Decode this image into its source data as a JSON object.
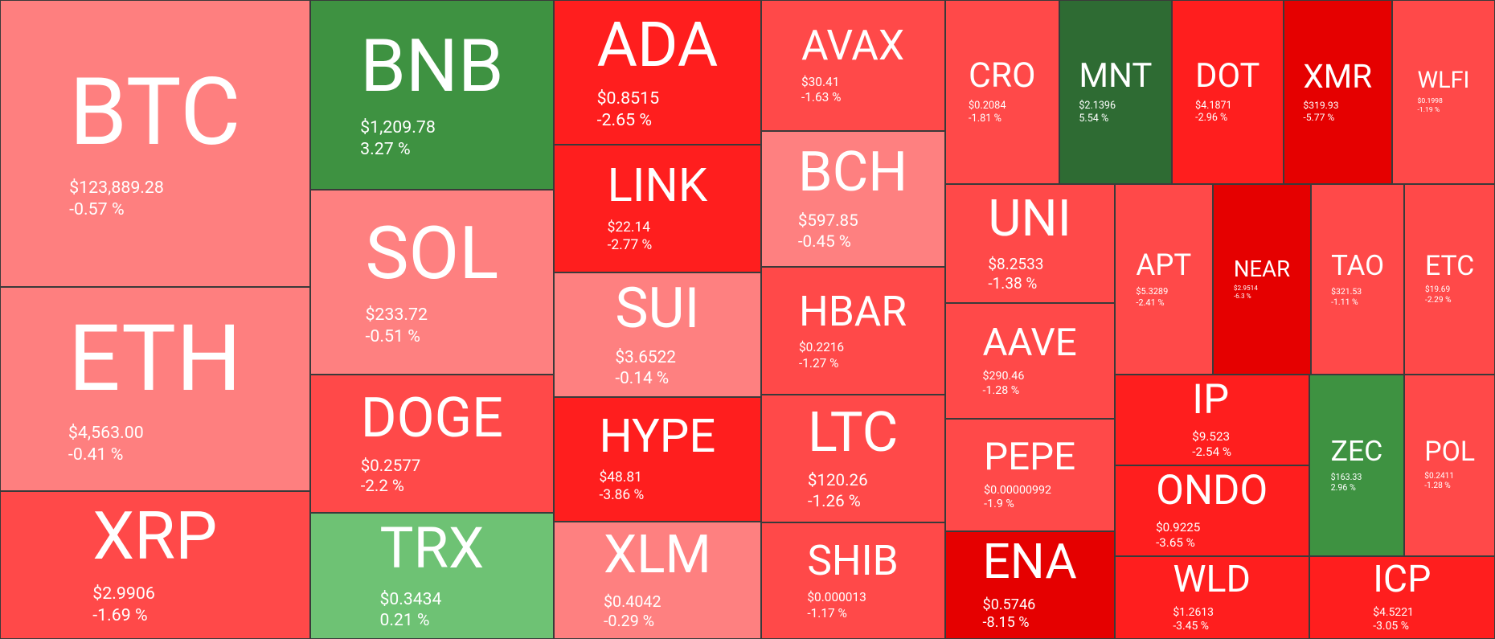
{
  "tiles": [
    {
      "symbol": "BTC",
      "price": "$123,889.28",
      "change": "-0.57 %"
    },
    {
      "symbol": "ETH",
      "price": "$4,563.00",
      "change": "-0.41 %"
    },
    {
      "symbol": "XRP",
      "price": "$2.9906",
      "change": "-1.69 %"
    },
    {
      "symbol": "BNB",
      "price": "$1,209.78",
      "change": "3.27 %"
    },
    {
      "symbol": "SOL",
      "price": "$233.72",
      "change": "-0.51 %"
    },
    {
      "symbol": "DOGE",
      "price": "$0.2577",
      "change": "-2.2 %"
    },
    {
      "symbol": "TRX",
      "price": "$0.3434",
      "change": "0.21 %"
    },
    {
      "symbol": "ADA",
      "price": "$0.8515",
      "change": "-2.65 %"
    },
    {
      "symbol": "LINK",
      "price": "$22.14",
      "change": "-2.77 %"
    },
    {
      "symbol": "SUI",
      "price": "$3.6522",
      "change": "-0.14 %"
    },
    {
      "symbol": "HYPE",
      "price": "$48.81",
      "change": "-3.86 %"
    },
    {
      "symbol": "XLM",
      "price": "$0.4042",
      "change": "-0.29 %"
    },
    {
      "symbol": "AVAX",
      "price": "$30.41",
      "change": "-1.63 %"
    },
    {
      "symbol": "BCH",
      "price": "$597.85",
      "change": "-0.45 %"
    },
    {
      "symbol": "HBAR",
      "price": "$0.2216",
      "change": "-1.27 %"
    },
    {
      "symbol": "LTC",
      "price": "$120.26",
      "change": "-1.26 %"
    },
    {
      "symbol": "SHIB",
      "price": "$0.000013",
      "change": "-1.17 %"
    },
    {
      "symbol": "CRO",
      "price": "$0.2084",
      "change": "-1.81 %"
    },
    {
      "symbol": "MNT",
      "price": "$2.1396",
      "change": "5.54 %"
    },
    {
      "symbol": "DOT",
      "price": "$4.1871",
      "change": "-2.96 %"
    },
    {
      "symbol": "XMR",
      "price": "$319.93",
      "change": "-5.77 %"
    },
    {
      "symbol": "WLFI",
      "price": "$0.1998",
      "change": "-1.19 %"
    },
    {
      "symbol": "UNI",
      "price": "$8.2533",
      "change": "-1.38 %"
    },
    {
      "symbol": "AAVE",
      "price": "$290.46",
      "change": "-1.28 %"
    },
    {
      "symbol": "PEPE",
      "price": "$0.00000992",
      "change": "-1.9 %"
    },
    {
      "symbol": "ENA",
      "price": "$0.5746",
      "change": "-8.15 %"
    },
    {
      "symbol": "APT",
      "price": "$5.3289",
      "change": "-2.41 %"
    },
    {
      "symbol": "NEAR",
      "price": "$2.9514",
      "change": "-6.3 %"
    },
    {
      "symbol": "TAO",
      "price": "$321.53",
      "change": "-1.11 %"
    },
    {
      "symbol": "ETC",
      "price": "$19.69",
      "change": "-2.29 %"
    },
    {
      "symbol": "IP",
      "price": "$9.523",
      "change": "-2.54 %"
    },
    {
      "symbol": "ONDO",
      "price": "$0.9225",
      "change": "-3.65 %"
    },
    {
      "symbol": "WLD",
      "price": "$1.2613",
      "change": "-3.45 %"
    },
    {
      "symbol": "ZEC",
      "price": "$163.33",
      "change": "2.96 %"
    },
    {
      "symbol": "POL",
      "price": "$0.2411",
      "change": "-1.28 %"
    },
    {
      "symbol": "ICP",
      "price": "$4.5221",
      "change": "-3.05 %"
    }
  ]
}
